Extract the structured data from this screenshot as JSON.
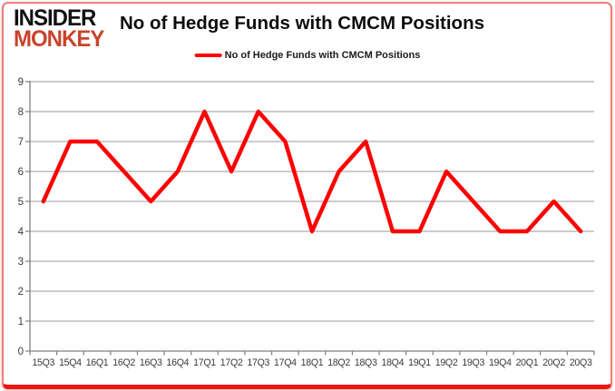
{
  "logo": {
    "line1": "INSIDER",
    "line2": "MONKEY"
  },
  "title": "No of Hedge Funds with CMCM Positions",
  "legend": {
    "label": "No of Hedge Funds with CMCM Positions",
    "marker_color": "#FF0000"
  },
  "colors": {
    "series_line": "#FF0000",
    "logo_black": "#111111",
    "logo_red": "#C8432C",
    "card_border": "#EC8078",
    "card_border_bottom": "#EE1414",
    "gridline": "#9A9A9A",
    "axis": "#808080",
    "tick_label": "#3A3A3A"
  },
  "chart_data": {
    "type": "line",
    "title": "No of Hedge Funds with CMCM Positions",
    "categories": [
      "15Q3",
      "15Q4",
      "16Q1",
      "16Q2",
      "16Q3",
      "16Q4",
      "17Q1",
      "17Q2",
      "17Q3",
      "17Q4",
      "18Q1",
      "18Q2",
      "18Q3",
      "18Q4",
      "19Q1",
      "19Q2",
      "19Q3",
      "19Q4",
      "20Q1",
      "20Q2",
      "20Q3"
    ],
    "series": [
      {
        "name": "No of Hedge Funds with CMCM Positions",
        "color": "#FF0000",
        "values": [
          5,
          7,
          7,
          6,
          5,
          6,
          8,
          6,
          8,
          7,
          4,
          6,
          7,
          4,
          4,
          6,
          5,
          4,
          4,
          5,
          4
        ]
      }
    ],
    "xlabel": "",
    "ylabel": "",
    "ylim": [
      0,
      9
    ],
    "ytick_step": 1,
    "grid": "horizontal",
    "legend_position": "top"
  }
}
